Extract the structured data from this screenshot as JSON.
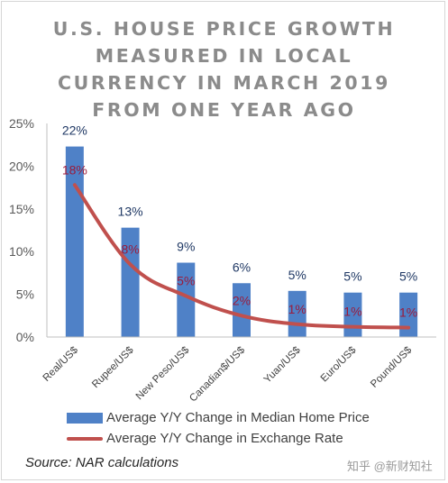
{
  "chart_data": {
    "type": "bar",
    "title_lines": [
      "U.S. HOUSE PRICE GROWTH",
      "MEASURED IN LOCAL",
      "CURRENCY IN MARCH 2019",
      "FROM ONE YEAR AGO"
    ],
    "categories": [
      "Real/US$",
      "Rupee/US$",
      "New Peso/US$",
      "Canadian$/US$",
      "Yuan/US$",
      "Euro/US$",
      "Pound/US$"
    ],
    "series": [
      {
        "name": "Average Y/Y Change in Median Home Price",
        "kind": "bar",
        "values": [
          22.3,
          12.8,
          8.7,
          6.3,
          5.4,
          5.2,
          5.2
        ],
        "labels": [
          "22%",
          "13%",
          "9%",
          "6%",
          "5%",
          "5%",
          "5%"
        ]
      },
      {
        "name": "Average Y/Y Change in Exchange Rate",
        "kind": "line",
        "values": [
          17.8,
          8.5,
          4.8,
          2.5,
          1.5,
          1.2,
          1.1
        ],
        "labels": [
          "18%",
          "8%",
          "5%",
          "2%",
          "1%",
          "1%",
          "1%"
        ]
      }
    ],
    "y_ticks": [
      "0%",
      "5%",
      "10%",
      "15%",
      "20%",
      "25%"
    ],
    "ylim": [
      0,
      25
    ],
    "grid": false,
    "legend_position": "bottom"
  },
  "source": "Source: NAR calculations",
  "watermark": "知乎 @新财知社",
  "colors": {
    "bar": "#4f81c7",
    "line": "#c0504d",
    "bar_label": "#1f3864",
    "line_label": "#9b1b3b",
    "title": "#8b8b8b"
  }
}
